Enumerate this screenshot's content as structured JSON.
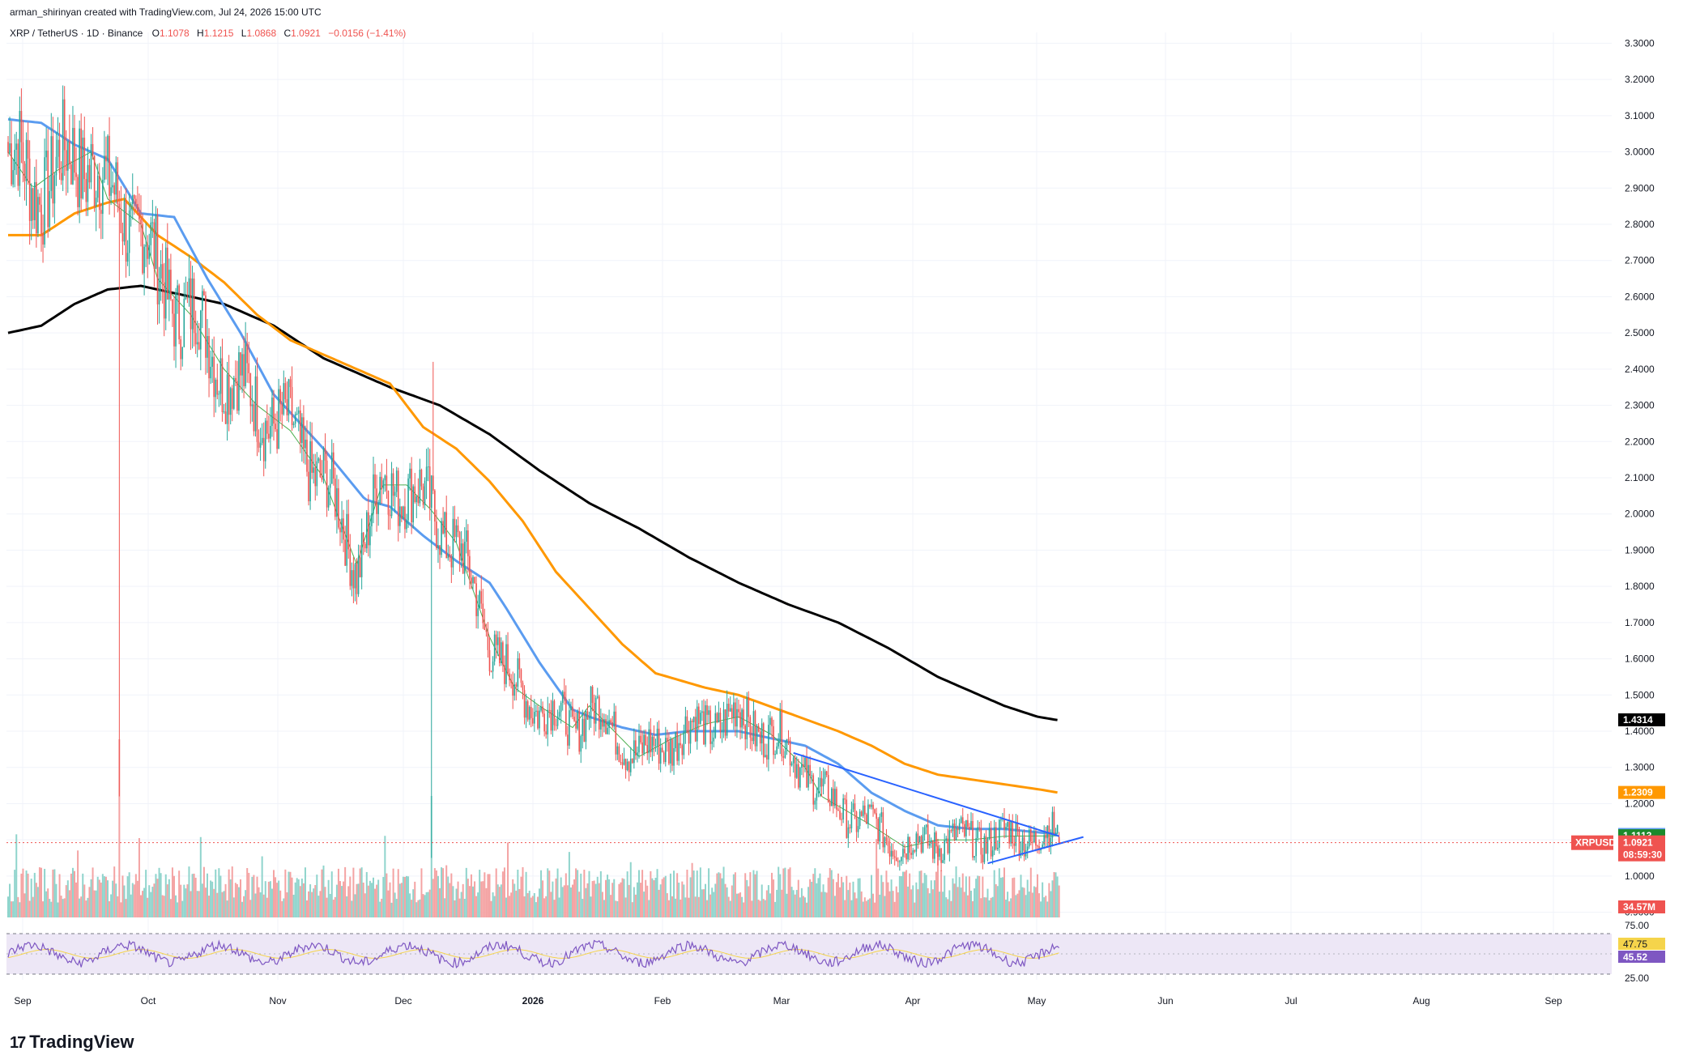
{
  "header": {
    "credit": "arman_shirinyan created with TradingView.com, Jul 24, 2026 15:00 UTC",
    "symbol": "XRP / TetherUS · 1D · Binance",
    "o_label": "O",
    "o_value": "1.1078",
    "h_label": "H",
    "h_value": "1.1215",
    "l_label": "L",
    "l_value": "1.0868",
    "c_label": "C",
    "c_value": "1.0921",
    "change": "−0.0156 (−1.41%)"
  },
  "brand": {
    "name": "TradingView",
    "logo_mark": "17"
  },
  "colors": {
    "up": "#26a69a",
    "down": "#ef5350",
    "vol_up": "#8fd4cc",
    "vol_down": "#f4a3a3",
    "ma_green": "#4caf50",
    "ma_blue": "#5b9cf0",
    "ma_orange": "#ff9800",
    "ma_black": "#000000",
    "trendline": "#2962ff",
    "rsi": "#7e57c2",
    "rsi_ma": "#f5d44b",
    "rsi_band": "#ede7f6"
  },
  "chart_data": {
    "type": "candlestick",
    "symbol": "XRPUSDT",
    "timeframe": "1D",
    "y_ticks": [
      "3.3000",
      "3.2000",
      "3.1000",
      "3.0000",
      "2.9000",
      "2.8000",
      "2.7000",
      "2.6000",
      "2.5000",
      "2.4000",
      "2.3000",
      "2.2000",
      "2.1000",
      "2.0000",
      "1.9000",
      "1.8000",
      "1.7000",
      "1.6000",
      "1.5000",
      "1.4000",
      "1.3000",
      "1.2000",
      "1.1000",
      "1.0000",
      "0.9000"
    ],
    "ylim": [
      0.87,
      3.33
    ],
    "x_ticks": [
      "Sep",
      "Oct",
      "Nov",
      "Dec",
      "2026",
      "Feb",
      "Mar",
      "Apr",
      "May",
      "Jun",
      "Jul",
      "Aug",
      "Sep"
    ],
    "last": {
      "open": 1.1078,
      "high": 1.1215,
      "low": 1.0868,
      "close": 1.0921
    },
    "price_tags": [
      {
        "label": "1.4314",
        "value": 1.4314,
        "color": "#000000"
      },
      {
        "label": "1.2309",
        "value": 1.2309,
        "color": "#ff9800"
      },
      {
        "label": "1.1148",
        "value": 1.1148,
        "color": "#5b9cf0"
      },
      {
        "label": "1.1113",
        "value": 1.1113,
        "color": "#1b8a2b"
      }
    ],
    "current_tag": {
      "symbol": "XRPUSDT",
      "price": "1.0921",
      "countdown": "08:59:30",
      "value": 1.0921
    },
    "volume_tag": "34.57M",
    "rsi": {
      "value": "45.52",
      "ma_value": "47.75",
      "upper": "75.00",
      "lower": "25.00"
    },
    "moving_averages": [
      {
        "color": "#000000",
        "points": [
          [
            0,
            2.5
          ],
          [
            20,
            2.52
          ],
          [
            40,
            2.58
          ],
          [
            60,
            2.62
          ],
          [
            80,
            2.63
          ],
          [
            100,
            2.61
          ],
          [
            130,
            2.58
          ],
          [
            160,
            2.52
          ],
          [
            190,
            2.43
          ],
          [
            230,
            2.35
          ],
          [
            260,
            2.3
          ],
          [
            290,
            2.22
          ],
          [
            320,
            2.12
          ],
          [
            350,
            2.03
          ],
          [
            380,
            1.96
          ],
          [
            410,
            1.88
          ],
          [
            440,
            1.81
          ],
          [
            470,
            1.75
          ],
          [
            500,
            1.7
          ],
          [
            530,
            1.63
          ],
          [
            560,
            1.55
          ],
          [
            585,
            1.5
          ],
          [
            600,
            1.47
          ],
          [
            620,
            1.44
          ],
          [
            633,
            1.43
          ]
        ]
      },
      {
        "color": "#ff9800",
        "points": [
          [
            0,
            2.77
          ],
          [
            20,
            2.77
          ],
          [
            40,
            2.83
          ],
          [
            60,
            2.86
          ],
          [
            70,
            2.87
          ],
          [
            90,
            2.77
          ],
          [
            110,
            2.71
          ],
          [
            130,
            2.64
          ],
          [
            150,
            2.55
          ],
          [
            170,
            2.48
          ],
          [
            200,
            2.42
          ],
          [
            230,
            2.36
          ],
          [
            250,
            2.24
          ],
          [
            270,
            2.18
          ],
          [
            290,
            2.09
          ],
          [
            310,
            1.98
          ],
          [
            330,
            1.84
          ],
          [
            350,
            1.74
          ],
          [
            370,
            1.64
          ],
          [
            390,
            1.56
          ],
          [
            420,
            1.52
          ],
          [
            440,
            1.5
          ],
          [
            470,
            1.45
          ],
          [
            500,
            1.4
          ],
          [
            520,
            1.36
          ],
          [
            540,
            1.31
          ],
          [
            560,
            1.28
          ],
          [
            590,
            1.26
          ],
          [
            620,
            1.24
          ],
          [
            633,
            1.23
          ]
        ]
      },
      {
        "color": "#5b9cf0",
        "points": [
          [
            0,
            3.09
          ],
          [
            20,
            3.08
          ],
          [
            40,
            3.02
          ],
          [
            60,
            2.98
          ],
          [
            80,
            2.83
          ],
          [
            100,
            2.82
          ],
          [
            120,
            2.65
          ],
          [
            140,
            2.5
          ],
          [
            160,
            2.33
          ],
          [
            190,
            2.18
          ],
          [
            215,
            2.04
          ],
          [
            230,
            2.02
          ],
          [
            250,
            1.94
          ],
          [
            270,
            1.87
          ],
          [
            290,
            1.81
          ],
          [
            300,
            1.74
          ],
          [
            320,
            1.59
          ],
          [
            340,
            1.46
          ],
          [
            350,
            1.44
          ],
          [
            370,
            1.41
          ],
          [
            390,
            1.39
          ],
          [
            410,
            1.4
          ],
          [
            440,
            1.4
          ],
          [
            460,
            1.38
          ],
          [
            480,
            1.36
          ],
          [
            500,
            1.31
          ],
          [
            520,
            1.23
          ],
          [
            540,
            1.18
          ],
          [
            560,
            1.14
          ],
          [
            580,
            1.13
          ],
          [
            600,
            1.13
          ],
          [
            633,
            1.115
          ]
        ]
      },
      {
        "color": "#4caf50",
        "points": [
          [
            0,
            3.0
          ],
          [
            15,
            2.9
          ],
          [
            30,
            2.95
          ],
          [
            50,
            3.0
          ],
          [
            60,
            2.87
          ],
          [
            80,
            2.8
          ],
          [
            90,
            2.65
          ],
          [
            110,
            2.55
          ],
          [
            130,
            2.4
          ],
          [
            150,
            2.3
          ],
          [
            170,
            2.23
          ],
          [
            190,
            2.1
          ],
          [
            210,
            1.86
          ],
          [
            225,
            2.08
          ],
          [
            240,
            2.08
          ],
          [
            255,
            2.01
          ],
          [
            270,
            1.92
          ],
          [
            290,
            1.66
          ],
          [
            305,
            1.52
          ],
          [
            320,
            1.47
          ],
          [
            340,
            1.41
          ],
          [
            350,
            1.47
          ],
          [
            380,
            1.33
          ],
          [
            400,
            1.38
          ],
          [
            420,
            1.42
          ],
          [
            440,
            1.44
          ],
          [
            460,
            1.39
          ],
          [
            480,
            1.3
          ],
          [
            490,
            1.22
          ],
          [
            505,
            1.18
          ],
          [
            520,
            1.14
          ],
          [
            540,
            1.08
          ],
          [
            560,
            1.1
          ],
          [
            580,
            1.1
          ],
          [
            600,
            1.11
          ],
          [
            633,
            1.111
          ]
        ]
      }
    ],
    "trendlines": [
      {
        "color": "#2962ff",
        "points": [
          [
            473,
            1.34
          ],
          [
            633,
            1.11
          ]
        ]
      },
      {
        "color": "#2962ff",
        "points": [
          [
            590,
            1.035
          ],
          [
            633,
            1.09
          ]
        ]
      }
    ]
  }
}
